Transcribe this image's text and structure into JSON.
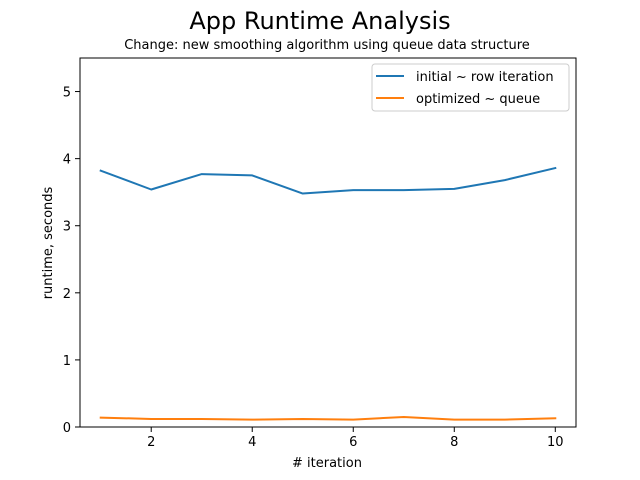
{
  "chart_data": {
    "type": "line",
    "title": "App Runtime Analysis",
    "subtitle": "Change: new smoothing algorithm using queue data structure",
    "xlabel": "# iteration",
    "ylabel": "runtime, seconds",
    "x": [
      1,
      2,
      3,
      4,
      5,
      6,
      7,
      8,
      9,
      10
    ],
    "xlim": [
      0.59,
      10.41
    ],
    "ylim": [
      0,
      5.5
    ],
    "xticks": [
      2,
      4,
      6,
      8,
      10
    ],
    "yticks": [
      0,
      1,
      2,
      3,
      4,
      5
    ],
    "grid": false,
    "legend_position": "top-right",
    "series": [
      {
        "name": "initial ~ row iteration",
        "color": "#1f77b4",
        "values": [
          3.82,
          3.54,
          3.77,
          3.75,
          3.48,
          3.53,
          3.53,
          3.55,
          3.68,
          3.86
        ]
      },
      {
        "name": "optimized ~ queue",
        "color": "#ff7f0e",
        "values": [
          0.14,
          0.12,
          0.12,
          0.11,
          0.12,
          0.11,
          0.15,
          0.11,
          0.11,
          0.13
        ]
      }
    ]
  }
}
